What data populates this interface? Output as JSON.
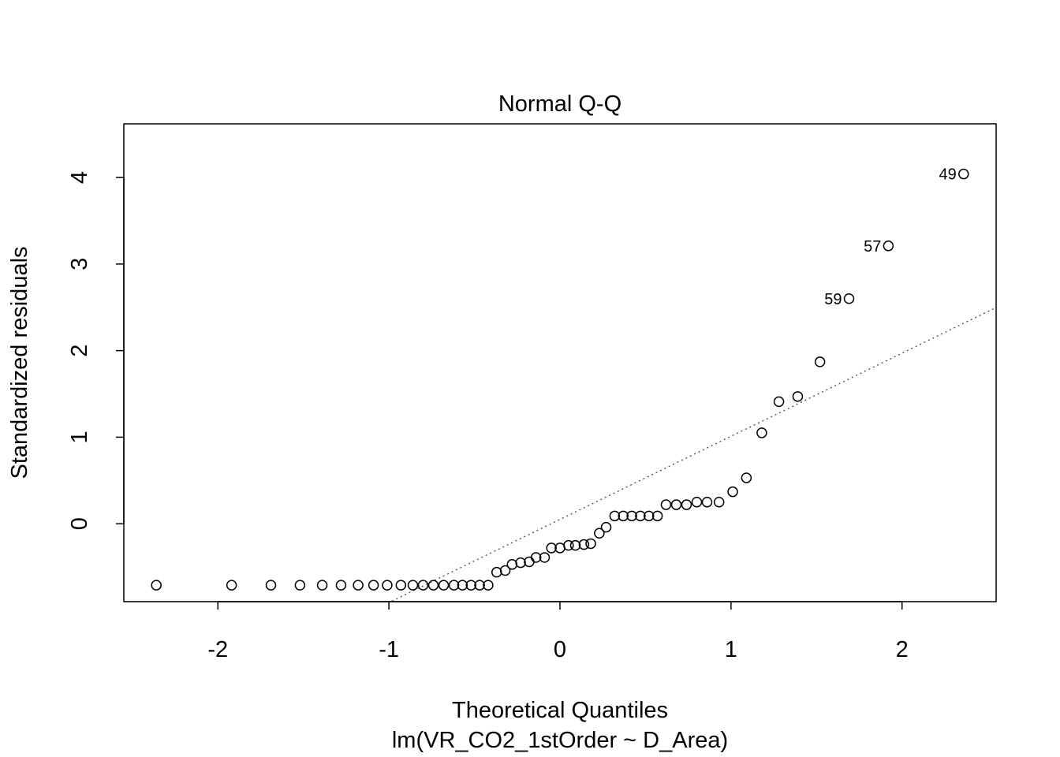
{
  "chart_data": {
    "type": "scatter",
    "title": "Normal Q-Q",
    "xlabel": "Theoretical Quantiles",
    "subtitle": "lm(VR_CO2_1stOrder ~ D_Area)",
    "ylabel": "Standardized residuals",
    "xlim": [
      -2.55,
      2.55
    ],
    "ylim": [
      -0.9,
      4.62
    ],
    "xticks": [
      "-2",
      "-1",
      "0",
      "1",
      "2"
    ],
    "xtick_values": [
      -2,
      -1,
      0,
      1,
      2
    ],
    "yticks": [
      "0",
      "1",
      "2",
      "3",
      "4"
    ],
    "ytick_values": [
      0,
      1,
      2,
      3,
      4
    ],
    "grid": false,
    "reference_line": {
      "style": "dotted",
      "slope": 0.96,
      "intercept": 0.05
    },
    "points": [
      {
        "x": -2.36,
        "y": -0.71
      },
      {
        "x": -1.92,
        "y": -0.71
      },
      {
        "x": -1.69,
        "y": -0.71
      },
      {
        "x": -1.52,
        "y": -0.71
      },
      {
        "x": -1.39,
        "y": -0.71
      },
      {
        "x": -1.28,
        "y": -0.71
      },
      {
        "x": -1.18,
        "y": -0.71
      },
      {
        "x": -1.09,
        "y": -0.71
      },
      {
        "x": -1.01,
        "y": -0.71
      },
      {
        "x": -0.93,
        "y": -0.71
      },
      {
        "x": -0.86,
        "y": -0.71
      },
      {
        "x": -0.8,
        "y": -0.71
      },
      {
        "x": -0.74,
        "y": -0.71
      },
      {
        "x": -0.68,
        "y": -0.71
      },
      {
        "x": -0.62,
        "y": -0.71
      },
      {
        "x": -0.57,
        "y": -0.71
      },
      {
        "x": -0.52,
        "y": -0.71
      },
      {
        "x": -0.47,
        "y": -0.71
      },
      {
        "x": -0.42,
        "y": -0.71
      },
      {
        "x": -0.37,
        "y": -0.56
      },
      {
        "x": -0.32,
        "y": -0.54
      },
      {
        "x": -0.28,
        "y": -0.47
      },
      {
        "x": -0.23,
        "y": -0.45
      },
      {
        "x": -0.18,
        "y": -0.44
      },
      {
        "x": -0.14,
        "y": -0.39
      },
      {
        "x": -0.09,
        "y": -0.39
      },
      {
        "x": -0.05,
        "y": -0.28
      },
      {
        "x": 0.0,
        "y": -0.28
      },
      {
        "x": 0.05,
        "y": -0.25
      },
      {
        "x": 0.09,
        "y": -0.25
      },
      {
        "x": 0.14,
        "y": -0.24
      },
      {
        "x": 0.18,
        "y": -0.23
      },
      {
        "x": 0.23,
        "y": -0.11
      },
      {
        "x": 0.27,
        "y": -0.04
      },
      {
        "x": 0.32,
        "y": 0.09
      },
      {
        "x": 0.37,
        "y": 0.09
      },
      {
        "x": 0.42,
        "y": 0.09
      },
      {
        "x": 0.47,
        "y": 0.09
      },
      {
        "x": 0.52,
        "y": 0.09
      },
      {
        "x": 0.57,
        "y": 0.09
      },
      {
        "x": 0.62,
        "y": 0.22
      },
      {
        "x": 0.68,
        "y": 0.22
      },
      {
        "x": 0.74,
        "y": 0.22
      },
      {
        "x": 0.8,
        "y": 0.25
      },
      {
        "x": 0.86,
        "y": 0.25
      },
      {
        "x": 0.93,
        "y": 0.25
      },
      {
        "x": 1.01,
        "y": 0.37
      },
      {
        "x": 1.09,
        "y": 0.53
      },
      {
        "x": 1.18,
        "y": 1.05
      },
      {
        "x": 1.28,
        "y": 1.41
      },
      {
        "x": 1.39,
        "y": 1.47
      },
      {
        "x": 1.52,
        "y": 1.87
      },
      {
        "x": 1.69,
        "y": 2.6,
        "label": "59"
      },
      {
        "x": 1.92,
        "y": 3.21,
        "label": "57"
      },
      {
        "x": 2.36,
        "y": 4.04,
        "label": "49"
      }
    ]
  }
}
